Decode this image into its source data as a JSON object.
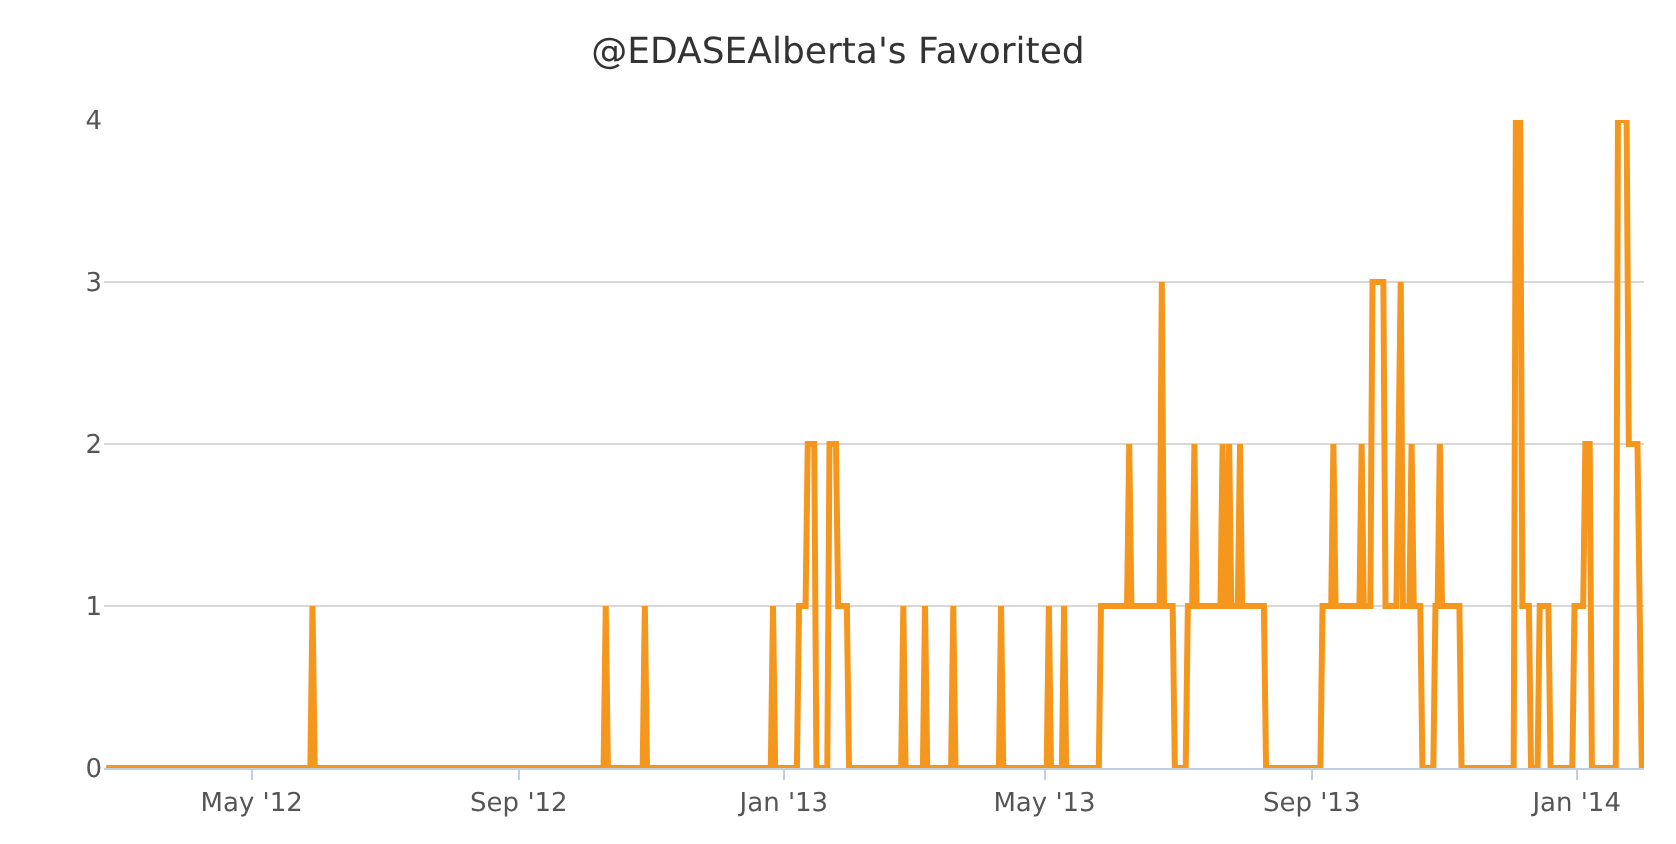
{
  "chart_data": {
    "type": "line",
    "title": "@EDASEAlberta's Favorited",
    "x": [
      "2012-02-24",
      "2012-05-28",
      "2012-05-29",
      "2012-05-30",
      "2012-10-10",
      "2012-10-11",
      "2012-10-12",
      "2012-10-28",
      "2012-10-29",
      "2012-10-30",
      "2012-12-26",
      "2012-12-27",
      "2012-12-28",
      "2013-01-07",
      "2013-01-08",
      "2013-01-11",
      "2013-01-12",
      "2013-01-15",
      "2013-01-16",
      "2013-01-21",
      "2013-01-22",
      "2013-01-25",
      "2013-01-26",
      "2013-01-30",
      "2013-01-31",
      "2013-02-24",
      "2013-02-25",
      "2013-02-26",
      "2013-03-06",
      "2013-03-07",
      "2013-03-08",
      "2013-03-19",
      "2013-03-20",
      "2013-03-21",
      "2013-04-10",
      "2013-04-11",
      "2013-04-12",
      "2013-05-02",
      "2013-05-03",
      "2013-05-04",
      "2013-05-09",
      "2013-05-10",
      "2013-05-11",
      "2013-05-26",
      "2013-05-27",
      "2013-06-08",
      "2013-06-09",
      "2013-06-10",
      "2013-06-23",
      "2013-06-24",
      "2013-06-25",
      "2013-06-29",
      "2013-06-30",
      "2013-07-05",
      "2013-07-06",
      "2013-07-08",
      "2013-07-09",
      "2013-07-10",
      "2013-07-21",
      "2013-07-22",
      "2013-07-23",
      "2013-07-24",
      "2013-07-25",
      "2013-07-26",
      "2013-07-29",
      "2013-07-30",
      "2013-07-31",
      "2013-08-10",
      "2013-08-11",
      "2013-09-05",
      "2013-09-06",
      "2013-09-10",
      "2013-09-11",
      "2013-09-12",
      "2013-09-23",
      "2013-09-24",
      "2013-09-25",
      "2013-09-28",
      "2013-09-29",
      "2013-10-04",
      "2013-10-05",
      "2013-10-10",
      "2013-10-12",
      "2013-10-13",
      "2013-10-16",
      "2013-10-17",
      "2013-10-18",
      "2013-10-21",
      "2013-10-22",
      "2013-10-27",
      "2013-10-28",
      "2013-10-29",
      "2013-10-30",
      "2013-10-31",
      "2013-11-08",
      "2013-11-09",
      "2013-12-03",
      "2013-12-04",
      "2013-12-06",
      "2013-12-07",
      "2013-12-10",
      "2013-12-11",
      "2013-12-14",
      "2013-12-15",
      "2013-12-19",
      "2013-12-20",
      "2013-12-30",
      "2013-12-31",
      "2014-01-04",
      "2014-01-05",
      "2014-01-07",
      "2014-01-08",
      "2014-01-19",
      "2014-01-20",
      "2014-01-24",
      "2014-01-25",
      "2014-01-29",
      "2014-01-31"
    ],
    "series": [
      {
        "color": "#f5961d",
        "values": [
          0,
          0,
          1,
          0,
          0,
          1,
          0,
          0,
          1,
          0,
          0,
          1,
          0,
          0,
          1,
          1,
          2,
          2,
          0,
          0,
          2,
          2,
          1,
          1,
          0,
          0,
          1,
          0,
          0,
          1,
          0,
          0,
          1,
          0,
          0,
          1,
          0,
          0,
          1,
          0,
          0,
          1,
          0,
          0,
          1,
          1,
          2,
          1,
          1,
          3,
          1,
          1,
          0,
          0,
          1,
          1,
          2,
          1,
          1,
          2,
          1,
          1,
          2,
          1,
          1,
          2,
          1,
          1,
          0,
          0,
          1,
          1,
          2,
          1,
          1,
          2,
          1,
          1,
          3,
          3,
          1,
          1,
          3,
          1,
          1,
          2,
          1,
          1,
          0,
          0,
          1,
          1,
          2,
          1,
          1,
          0,
          0,
          4,
          4,
          1,
          1,
          0,
          0,
          1,
          1,
          0,
          0,
          1,
          1,
          2,
          2,
          0,
          0,
          4,
          4,
          2,
          2,
          0
        ]
      }
    ],
    "xlim": [
      "2012-02-23",
      "2014-02-01"
    ],
    "xticks": [
      {
        "value": "2012-05-01",
        "label": "May '12"
      },
      {
        "value": "2012-09-01",
        "label": "Sep '12"
      },
      {
        "value": "2013-01-01",
        "label": "Jan '13"
      },
      {
        "value": "2013-05-01",
        "label": "May '13"
      },
      {
        "value": "2013-09-01",
        "label": "Sep '13"
      },
      {
        "value": "2014-01-01",
        "label": "Jan '14"
      }
    ],
    "ylim": [
      0,
      4
    ],
    "yticks": [
      0,
      1,
      2,
      3,
      4
    ],
    "grid": "y"
  }
}
